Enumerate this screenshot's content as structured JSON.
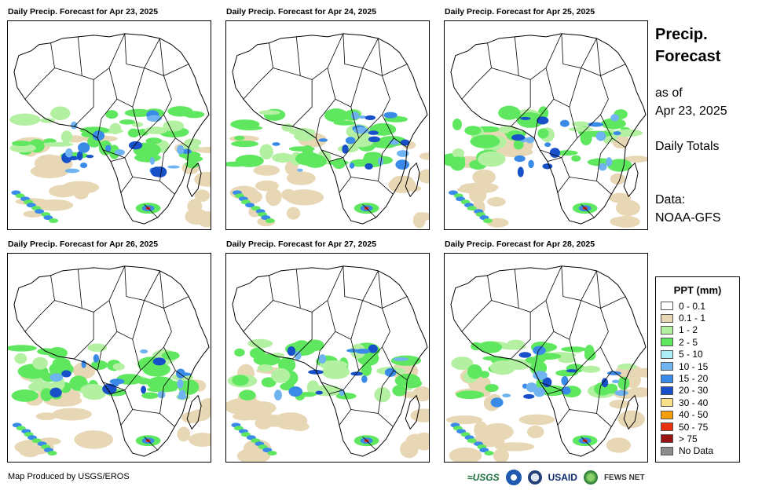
{
  "panels": [
    {
      "title": "Daily Precip. Forecast for Apr 23, 2025",
      "intensity": 1.0
    },
    {
      "title": "Daily Precip. Forecast for Apr 24, 2025",
      "intensity": 0.9
    },
    {
      "title": "Daily Precip. Forecast for Apr 25, 2025",
      "intensity": 0.8
    },
    {
      "title": "Daily Precip. Forecast for Apr 26, 2025",
      "intensity": 0.75
    },
    {
      "title": "Daily Precip. Forecast for Apr 27, 2025",
      "intensity": 0.7
    },
    {
      "title": "Daily Precip. Forecast for Apr 28, 2025",
      "intensity": 0.75
    }
  ],
  "side": {
    "title_line1": "Precip.",
    "title_line2": "Forecast",
    "asof_line1": "as of",
    "asof_line2": "Apr 23, 2025",
    "totals": "Daily Totals",
    "data_line1": "Data:",
    "data_line2": "NOAA-GFS"
  },
  "legend": {
    "title": "PPT (mm)",
    "items": [
      {
        "label": "0 - 0.1",
        "color": "#ffffff"
      },
      {
        "label": "0.1 - 1",
        "color": "#e8d7b5"
      },
      {
        "label": "1 - 2",
        "color": "#b4f0a2"
      },
      {
        "label": "2 - 5",
        "color": "#5fe85f"
      },
      {
        "label": "5 - 10",
        "color": "#aeeef8"
      },
      {
        "label": "10 - 15",
        "color": "#6fb4f0"
      },
      {
        "label": "15 - 20",
        "color": "#3a8be8"
      },
      {
        "label": "20 - 30",
        "color": "#1750c8"
      },
      {
        "label": "30 - 40",
        "color": "#fbe08a"
      },
      {
        "label": "40 - 50",
        "color": "#f59e0b"
      },
      {
        "label": "50 - 75",
        "color": "#e8320f"
      },
      {
        "label": "> 75",
        "color": "#9b1414"
      },
      {
        "label": "No Data",
        "color": "#8c8c8c"
      }
    ]
  },
  "footer": {
    "credit": "Map Produced by USGS/EROS",
    "logo_usgs": "≈USGS",
    "logo_usaid": "USAID",
    "logo_fews": "FEWS NET"
  }
}
